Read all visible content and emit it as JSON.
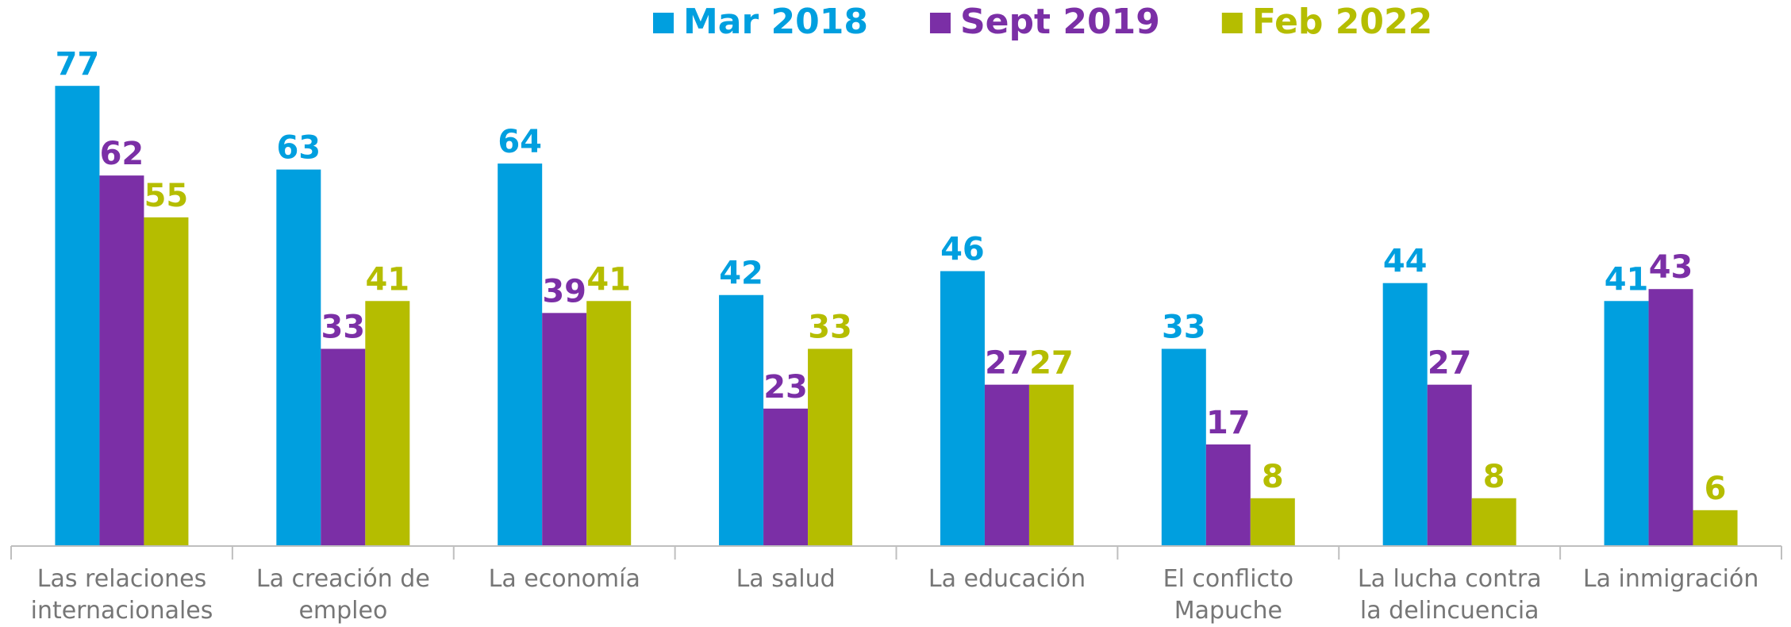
{
  "chart_data": {
    "type": "bar",
    "categories": [
      "Las relaciones\ninternacionales",
      "La creación de\nempleo",
      "La economía",
      "La salud",
      "La educación",
      "El conflicto\nMapuche",
      "La lucha contra\nla delincuencia",
      "La inmigración"
    ],
    "series": [
      {
        "name": "Mar 2018",
        "color": "#009fdf",
        "values": [
          77,
          63,
          64,
          42,
          46,
          33,
          44,
          41
        ]
      },
      {
        "name": "Sept 2019",
        "color": "#7b2fa6",
        "values": [
          62,
          33,
          39,
          23,
          27,
          17,
          27,
          43
        ]
      },
      {
        "name": "Feb 2022",
        "color": "#b5bd00",
        "values": [
          55,
          41,
          41,
          33,
          27,
          8,
          8,
          6
        ]
      }
    ],
    "legend": "top"
  }
}
